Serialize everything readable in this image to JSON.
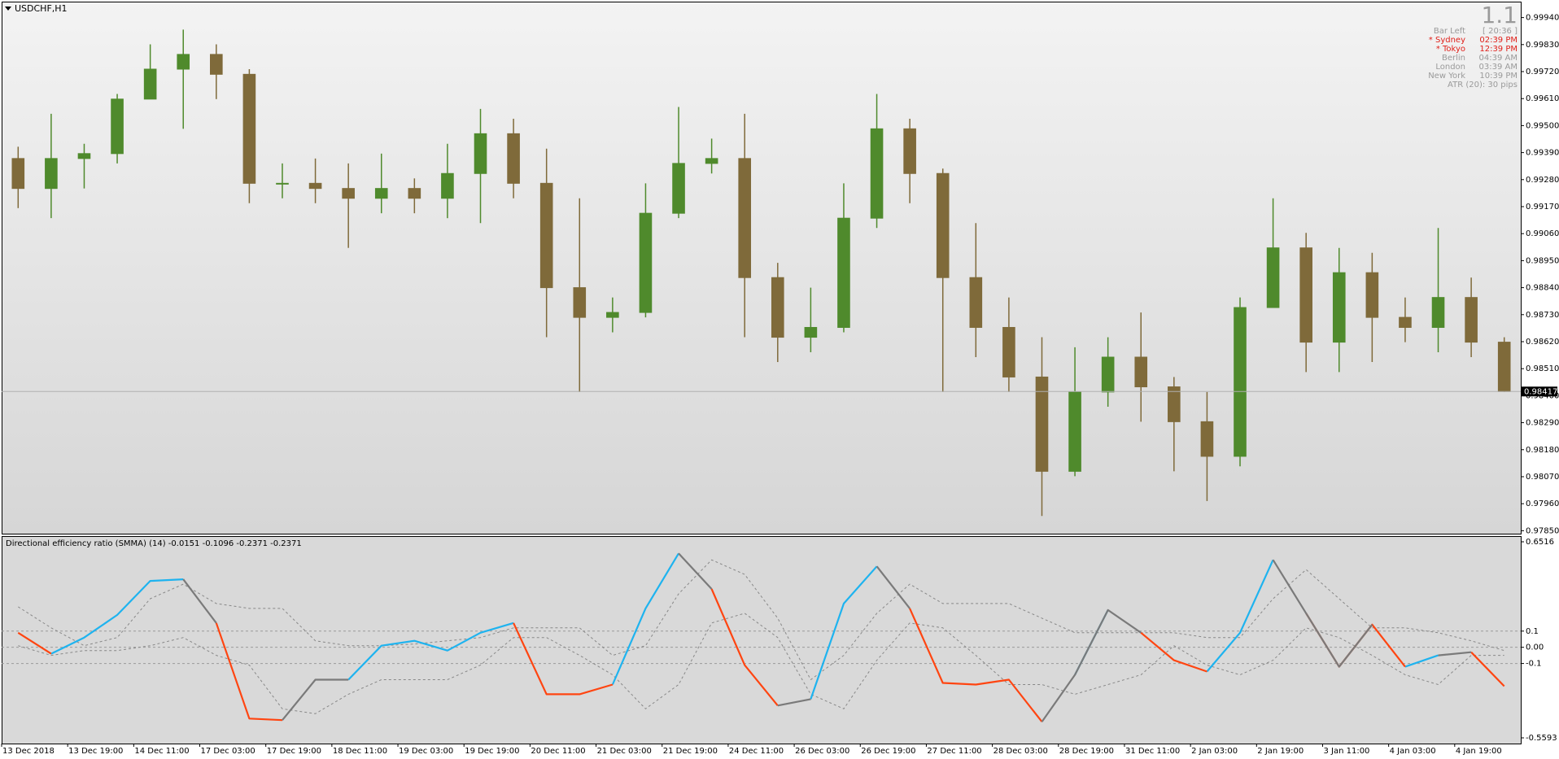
{
  "window_title": "USDCHF,H1",
  "info_panel": {
    "headline": "1.1",
    "rows": [
      {
        "label": "Bar Left",
        "value": "[ 20:36 ]",
        "color": "#9a9a9a"
      },
      {
        "label": "* Sydney",
        "value": "02:39 PM",
        "color": "#e0201a"
      },
      {
        "label": "* Tokyo",
        "value": "12:39 PM",
        "color": "#e0201a"
      },
      {
        "label": "Berlin",
        "value": "04:39 AM",
        "color": "#9a9a9a"
      },
      {
        "label": "London",
        "value": "03:39 AM",
        "color": "#9a9a9a"
      },
      {
        "label": "New York",
        "value": "10:39 PM",
        "color": "#9a9a9a"
      },
      {
        "label": "ATR (20): 30 pips",
        "value": null,
        "color": "#9a9a9a"
      }
    ]
  },
  "chart_data": [
    {
      "type": "candlestick",
      "x": [
        "13 Dec 2018",
        null,
        "13 Dec 19:00",
        null,
        "14 Dec 11:00",
        null,
        "17 Dec 03:00",
        null,
        "17 Dec 19:00",
        null,
        "18 Dec 11:00",
        null,
        "19 Dec 03:00",
        null,
        "19 Dec 19:00",
        null,
        "20 Dec 11:00",
        null,
        "21 Dec 03:00",
        null,
        "21 Dec 19:00",
        null,
        "24 Dec 11:00",
        null,
        "26 Dec 03:00",
        null,
        "26 Dec 19:00",
        null,
        "27 Dec 11:00",
        null,
        "28 Dec 03:00",
        null,
        "28 Dec 19:00",
        null,
        "31 Dec 11:00",
        null,
        "2 Jan 03:00",
        null,
        "2 Jan 19:00",
        null,
        "3 Jan 11:00",
        null,
        "4 Jan 03:00",
        null,
        "4 Jan 19:00",
        null
      ],
      "open": [
        0.99366,
        0.99244,
        0.99366,
        0.99386,
        0.99608,
        0.9973,
        0.9979,
        0.99709,
        0.99265,
        0.99265,
        0.99244,
        0.99204,
        0.99244,
        0.99204,
        0.99305,
        0.99467,
        0.99265,
        0.9884,
        0.98719,
        0.98739,
        0.99143,
        0.99346,
        0.99366,
        0.98881,
        0.98638,
        0.98678,
        0.99123,
        0.99487,
        0.99305,
        0.98881,
        0.98678,
        0.98476,
        0.98092,
        0.98415,
        0.98557,
        0.98436,
        0.98294,
        0.98153,
        0.98759,
        0.99002,
        0.98618,
        0.98901,
        0.98719,
        0.98678,
        0.988,
        0.98618
      ],
      "high": [
        0.99414,
        0.99548,
        0.99426,
        0.99629,
        0.99831,
        0.99891,
        0.99831,
        0.9973,
        0.99346,
        0.99366,
        0.99346,
        0.99386,
        0.99285,
        0.99426,
        0.99568,
        0.99528,
        0.99406,
        0.99204,
        0.988,
        0.99265,
        0.99576,
        0.99447,
        0.99548,
        0.98941,
        0.9884,
        0.99265,
        0.99629,
        0.99528,
        0.99325,
        0.99103,
        0.988,
        0.98638,
        0.98597,
        0.98638,
        0.98739,
        0.98476,
        0.98415,
        0.988,
        0.99204,
        0.99063,
        0.99002,
        0.98982,
        0.988,
        0.99083,
        0.98881,
        0.98638
      ],
      "low": [
        0.99164,
        0.99123,
        0.99244,
        0.99346,
        0.99608,
        0.99487,
        0.99608,
        0.99184,
        0.99204,
        0.99184,
        0.99002,
        0.99143,
        0.99143,
        0.99123,
        0.99103,
        0.99204,
        0.98638,
        0.98415,
        0.98658,
        0.98719,
        0.99123,
        0.99305,
        0.98638,
        0.98537,
        0.98577,
        0.98658,
        0.99083,
        0.99184,
        0.98415,
        0.98557,
        0.98415,
        0.9791,
        0.98072,
        0.98355,
        0.98294,
        0.98092,
        0.97971,
        0.98112,
        0.98759,
        0.98496,
        0.98496,
        0.98537,
        0.98618,
        0.98577,
        0.98557,
        0.98415
      ],
      "close": [
        0.99244,
        0.99366,
        0.99386,
        0.99608,
        0.9973,
        0.9979,
        0.99709,
        0.99265,
        0.99265,
        0.99244,
        0.99204,
        0.99244,
        0.99204,
        0.99305,
        0.99467,
        0.99265,
        0.9884,
        0.98719,
        0.98739,
        0.99143,
        0.99346,
        0.99366,
        0.98881,
        0.98638,
        0.98678,
        0.99123,
        0.99487,
        0.99305,
        0.98881,
        0.98678,
        0.98476,
        0.98092,
        0.98415,
        0.98557,
        0.98436,
        0.98294,
        0.98153,
        0.98759,
        0.99002,
        0.98618,
        0.98901,
        0.98719,
        0.98678,
        0.988,
        0.98618,
        0.98417
      ],
      "up_color": "#4f8a2c",
      "down_color": "#7f6a3a",
      "current_price": 0.98417,
      "ylim": [
        0.97838,
        1.00005
      ],
      "yticks": [
        {
          "value": 0.9994,
          "label": "0.99940"
        },
        {
          "value": 0.9983,
          "label": "0.99830"
        },
        {
          "value": 0.9972,
          "label": "0.99720"
        },
        {
          "value": 0.9961,
          "label": "0.99610"
        },
        {
          "value": 0.995,
          "label": "0.99500"
        },
        {
          "value": 0.9939,
          "label": "0.99390"
        },
        {
          "value": 0.9928,
          "label": "0.99280"
        },
        {
          "value": 0.9917,
          "label": "0.99170"
        },
        {
          "value": 0.9906,
          "label": "0.99060"
        },
        {
          "value": 0.9895,
          "label": "0.98950"
        },
        {
          "value": 0.9884,
          "label": "0.98840"
        },
        {
          "value": 0.9873,
          "label": "0.98730"
        },
        {
          "value": 0.9862,
          "label": "0.98620"
        },
        {
          "value": 0.9851,
          "label": "0.98510"
        },
        {
          "value": 0.984,
          "label": "0.98400"
        },
        {
          "value": 0.9829,
          "label": "0.98290"
        },
        {
          "value": 0.9818,
          "label": "0.98180"
        },
        {
          "value": 0.9807,
          "label": "0.98070"
        },
        {
          "value": 0.9796,
          "label": "0.97960"
        },
        {
          "value": 0.9785,
          "label": "0.97850"
        }
      ]
    },
    {
      "type": "line",
      "title": "Directional efficiency ratio (SMMA) (14) -0.0151 -0.1096 -0.2371 -0.2371",
      "ylim": [
        -0.5593,
        0.6516
      ],
      "yticks": [
        0.6516,
        0.1,
        {
          "value": 0,
          "label": "0.00"
        },
        -0.1,
        -0.5593
      ],
      "levels": [
        0.1,
        0,
        -0.1
      ],
      "series": [
        {
          "color": "#888888",
          "line_style": "dashed",
          "values": [
            0.25,
            0.12,
            0.01,
            0.06,
            0.3,
            0.39,
            0.27,
            0.24,
            0.24,
            0.04,
            0.01,
            0.01,
            0.02,
            0.04,
            0.06,
            0.12,
            0.12,
            0.12,
            -0.05,
            0.01,
            0.33,
            0.54,
            0.45,
            0.18,
            -0.2,
            -0.05,
            0.21,
            0.39,
            0.27,
            0.27,
            0.27,
            0.18,
            0.09,
            0.09,
            0.09,
            0.09,
            0.06,
            0.06,
            0.3,
            0.48,
            0.3,
            0.12,
            0.12,
            0.09,
            0.04,
            -0.02
          ]
        },
        {
          "color": "#888888",
          "line_style": "dashed",
          "values": [
            0.01,
            -0.05,
            -0.02,
            -0.02,
            0.01,
            0.06,
            -0.05,
            -0.11,
            -0.38,
            -0.41,
            -0.29,
            -0.2,
            -0.2,
            -0.2,
            -0.11,
            0.06,
            0.06,
            -0.05,
            -0.17,
            -0.38,
            -0.23,
            0.15,
            0.21,
            0.06,
            -0.29,
            -0.38,
            -0.08,
            0.15,
            0.12,
            -0.05,
            -0.23,
            -0.23,
            -0.29,
            -0.23,
            -0.17,
            0.01,
            -0.11,
            -0.17,
            -0.08,
            0.12,
            0.06,
            -0.05,
            -0.17,
            -0.23,
            -0.05,
            -0.05
          ]
        },
        {
          "color": "#1eb3ef",
          "line_style": "solid",
          "values": [
            null,
            -0.04,
            0.06,
            0.2,
            0.41,
            0.42,
            null,
            null,
            null,
            null,
            -0.2,
            0.01,
            0.04,
            -0.02,
            0.09,
            0.15,
            null,
            null,
            -0.23,
            0.24,
            0.58,
            null,
            null,
            null,
            -0.32,
            0.27,
            0.5,
            null,
            null,
            null,
            null,
            null,
            -0.17,
            0.23,
            null,
            null,
            -0.15,
            0.09,
            0.54,
            null,
            null,
            null,
            -0.12,
            -0.05,
            null,
            null
          ]
        },
        {
          "color": "#ff4511",
          "line_style": "solid",
          "values": [
            0.09,
            -0.04,
            null,
            null,
            null,
            null,
            0.15,
            -0.44,
            -0.45,
            null,
            null,
            null,
            null,
            null,
            null,
            0.15,
            -0.29,
            -0.29,
            -0.23,
            null,
            null,
            0.36,
            -0.11,
            -0.36,
            null,
            null,
            null,
            0.24,
            -0.22,
            -0.23,
            -0.2,
            -0.46,
            null,
            null,
            0.09,
            -0.08,
            -0.15,
            null,
            null,
            0.21,
            -0.12,
            0.14,
            -0.12,
            null,
            -0.03,
            -0.24
          ]
        },
        {
          "color": "#7a7a7a",
          "line_style": "solid",
          "values": [
            null,
            null,
            null,
            null,
            null,
            0.42,
            0.15,
            null,
            -0.45,
            -0.2,
            -0.2,
            null,
            null,
            null,
            null,
            null,
            null,
            null,
            null,
            null,
            0.58,
            0.36,
            null,
            -0.36,
            -0.32,
            null,
            0.5,
            0.24,
            null,
            null,
            null,
            -0.46,
            -0.17,
            0.23,
            0.09,
            null,
            null,
            null,
            0.54,
            0.21,
            -0.12,
            0.14,
            null,
            -0.05,
            -0.03,
            null
          ]
        }
      ]
    }
  ]
}
